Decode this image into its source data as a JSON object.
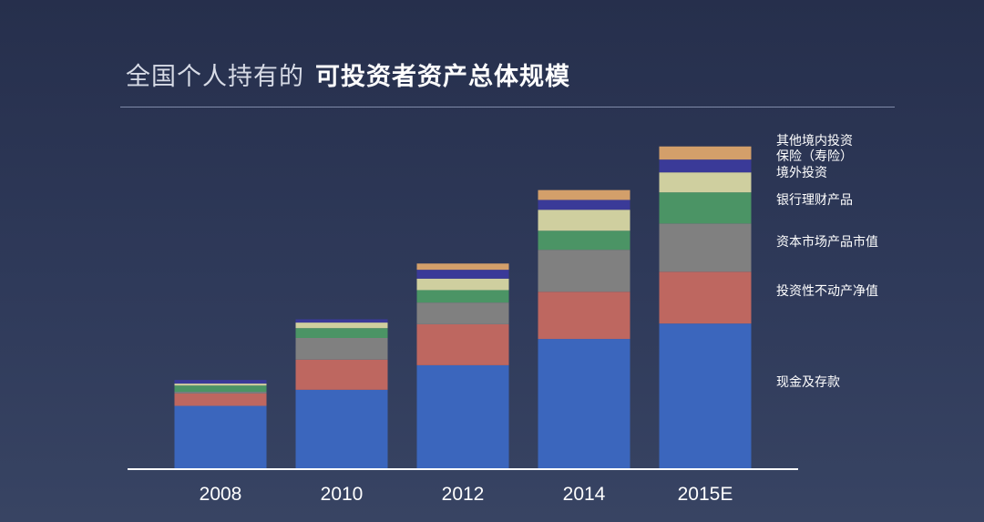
{
  "header": {
    "title_light": "全国个人持有的",
    "title_bold": "可投资者资产总体规模"
  },
  "chart_data": {
    "type": "bar",
    "stacked": true,
    "title": "全国个人持有的 可投资者资产总体规模",
    "xlabel": "",
    "ylabel": "",
    "ylim": [
      0,
      100
    ],
    "grid": false,
    "legend_position": "right",
    "categories": [
      "2008",
      "2010",
      "2012",
      "2014",
      "2015E"
    ],
    "series": [
      {
        "name": "现金及存款",
        "color": "#3b66bd",
        "values": [
          19.3,
          24.2,
          31.7,
          39.7,
          44.4
        ]
      },
      {
        "name": "投资性不动产净值",
        "color": "#be6760",
        "values": [
          3.8,
          9.2,
          12.5,
          14.4,
          15.8
        ]
      },
      {
        "name": "资本市场产品市值",
        "color": "#808080",
        "values": [
          0.5,
          6.6,
          6.6,
          12.8,
          14.7
        ]
      },
      {
        "name": "银行理财产品",
        "color": "#4b9465",
        "values": [
          1.9,
          3.0,
          3.8,
          5.8,
          9.5
        ]
      },
      {
        "name": "境外投资",
        "color": "#cfcf9f",
        "values": [
          0.6,
          1.7,
          3.5,
          6.4,
          6.1
        ]
      },
      {
        "name": "保险（寿险）",
        "color": "#3a3a98",
        "values": [
          1.1,
          1.0,
          2.7,
          3.0,
          3.9
        ]
      },
      {
        "name": "其他境内投资",
        "color": "#d39f6a",
        "values": [
          0.0,
          0.0,
          1.9,
          3.0,
          4.0
        ]
      }
    ]
  }
}
